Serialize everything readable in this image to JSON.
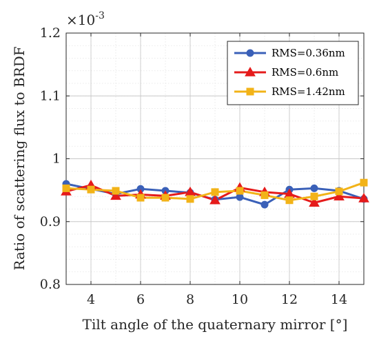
{
  "chart_data": {
    "type": "line",
    "xlabel": "Tilt angle of the quaternary mirror  [°]",
    "ylabel": "Ratio of scattering flux to BRDF",
    "y_multiplier": {
      "base": "×10",
      "exponent": "-3"
    },
    "xlim": [
      3,
      15
    ],
    "ylim": [
      0.8,
      1.2
    ],
    "x_ticks": [
      4,
      6,
      8,
      10,
      12,
      14
    ],
    "y_ticks": [
      0.8,
      0.9,
      1,
      1.1,
      1.2
    ],
    "y_tick_labels": [
      "0.8",
      "0.9",
      "1",
      "1.1",
      "1.2"
    ],
    "grid": true,
    "minor_grid": true,
    "legend_position": "top-right",
    "x": [
      3,
      4,
      5,
      6,
      7,
      8,
      9,
      10,
      11,
      12,
      13,
      14,
      15
    ],
    "series": [
      {
        "name": "RMS=0.36nm",
        "color": "#3a60b8",
        "marker": "circle",
        "values": [
          0.96,
          0.952,
          0.944,
          0.952,
          0.949,
          0.946,
          0.935,
          0.939,
          0.927,
          0.951,
          0.953,
          0.949,
          0.936
        ]
      },
      {
        "name": "RMS=0.6nm",
        "color": "#e51b1b",
        "marker": "triangle",
        "values": [
          0.948,
          0.958,
          0.941,
          0.943,
          0.941,
          0.947,
          0.934,
          0.954,
          0.947,
          0.944,
          0.93,
          0.94,
          0.937
        ]
      },
      {
        "name": "RMS=1.42nm",
        "color": "#f2b318",
        "marker": "square",
        "values": [
          0.953,
          0.951,
          0.949,
          0.938,
          0.938,
          0.936,
          0.947,
          0.949,
          0.942,
          0.934,
          0.94,
          0.948,
          0.962
        ]
      }
    ]
  }
}
